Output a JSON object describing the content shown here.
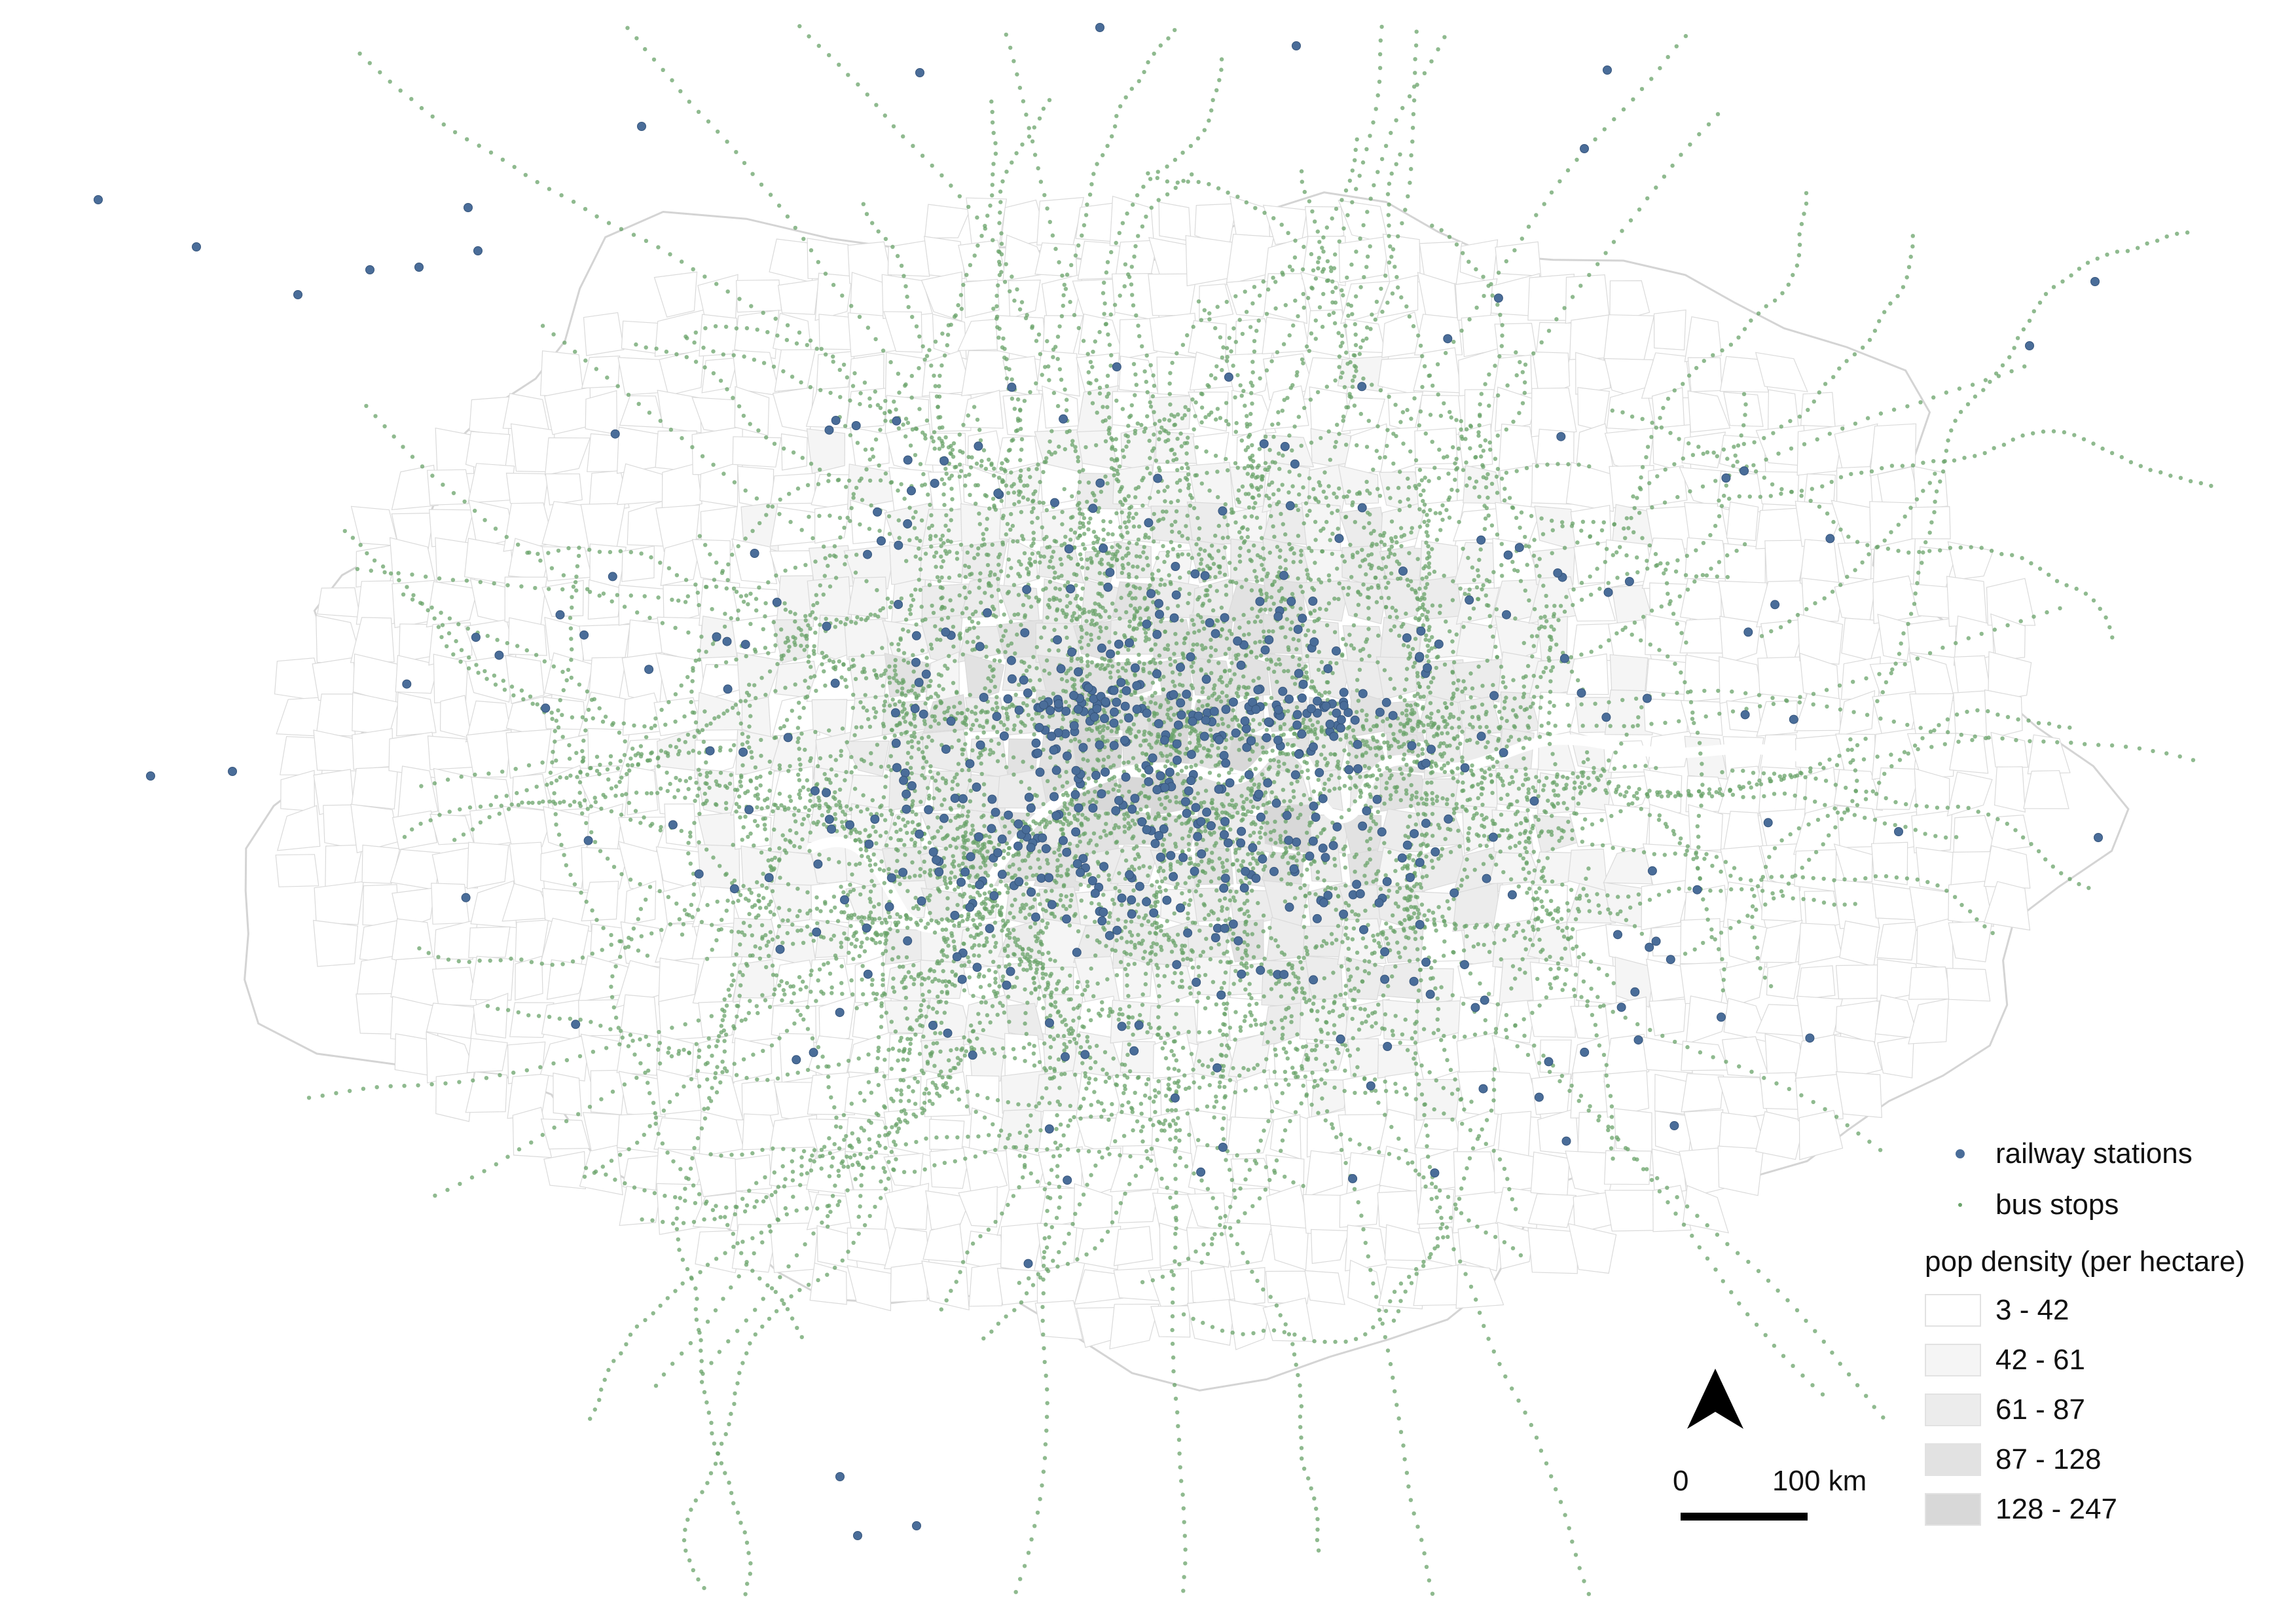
{
  "colors": {
    "railway_station": "#4a6d99",
    "bus_stop": "#6aa36a",
    "boundary": "#c9c9c9",
    "river": "#ffffff"
  },
  "legend": {
    "items": [
      {
        "label": "railway stations",
        "symbol": "railway-station-dot",
        "color": "#4a6d99"
      },
      {
        "label": "bus stops",
        "symbol": "bus-stop-dot",
        "color": "#6aa36a"
      }
    ],
    "title": "pop density (per hectare)",
    "classes": [
      {
        "label": "3 - 42",
        "fill": "#ffffff"
      },
      {
        "label": "42 - 61",
        "fill": "#f5f5f5"
      },
      {
        "label": "61 - 87",
        "fill": "#ececec"
      },
      {
        "label": "87 - 128",
        "fill": "#e2e2e2"
      },
      {
        "label": "128 - 247",
        "fill": "#d8d8d8"
      }
    ]
  },
  "scale_bar": {
    "start_label": "0",
    "end_label": "100 km"
  },
  "north_arrow": {
    "icon": "north-arrow-icon"
  }
}
